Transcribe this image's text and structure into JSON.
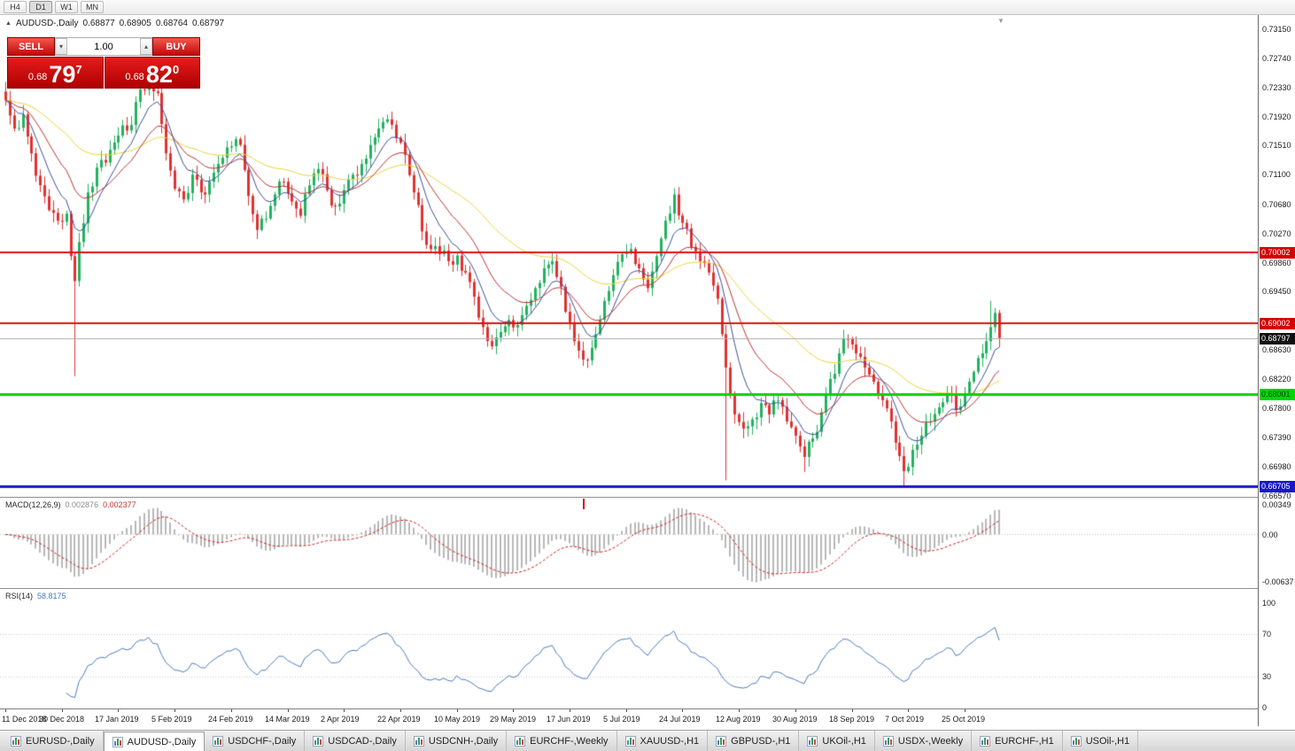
{
  "toolbar": {
    "timeframes": [
      "H4",
      "D1",
      "W1",
      "MN"
    ],
    "active": "D1"
  },
  "chart": {
    "title_symbol": "AUDUSD-,Daily",
    "open": "0.68877",
    "high": "0.68905",
    "low": "0.68764",
    "close": "0.68797"
  },
  "trade_panel": {
    "sell_label": "SELL",
    "buy_label": "BUY",
    "volume": "1.00",
    "bid_prefix": "0.68",
    "bid_big": "79",
    "bid_sup": "7",
    "ask_prefix": "0.68",
    "ask_big": "82",
    "ask_sup": "0"
  },
  "macd_panel": {
    "label": "MACD(12,26,9)",
    "value_main": "0.002876",
    "value_signal": "0.002377",
    "axis": [
      "0.00349",
      "0.00",
      "-0.00637"
    ]
  },
  "rsi_panel": {
    "label": "RSI(14)",
    "value": "58.8175",
    "axis": [
      "100",
      "70",
      "30",
      "0"
    ]
  },
  "tabs": [
    {
      "label": "EURUSD-,Daily",
      "active": false
    },
    {
      "label": "AUDUSD-,Daily",
      "active": true
    },
    {
      "label": "USDCHF-,Daily",
      "active": false
    },
    {
      "label": "USDCAD-,Daily",
      "active": false
    },
    {
      "label": "USDCNH-,Daily",
      "active": false
    },
    {
      "label": "EURCHF-,Weekly",
      "active": false
    },
    {
      "label": "XAUUSD-,H1",
      "active": false
    },
    {
      "label": "GBPUSD-,H1",
      "active": false
    },
    {
      "label": "UKOil-,H1",
      "active": false
    },
    {
      "label": "USDX-,Weekly",
      "active": false
    },
    {
      "label": "EURCHF-,H1",
      "active": false
    },
    {
      "label": "USOil-,H1",
      "active": false
    }
  ],
  "chart_data": {
    "type": "candlestick",
    "symbol": "AUDUSD",
    "timeframe": "Daily",
    "current_quote": {
      "open": 0.68877,
      "high": 0.68905,
      "low": 0.68764,
      "close": 0.68797,
      "bid": 0.68797,
      "ask": 0.6882
    },
    "candle_count": 230,
    "colors": {
      "up": "#22b25f",
      "down": "#e03232",
      "ma_fast": "#3a4f9e",
      "ma_mid": "#c03030",
      "ma_slow": "#e8d43a",
      "macd_hist": "#b8b8b8",
      "macd_signal": "#d02020",
      "rsi": "#4b7bbd"
    },
    "y_axis_ticks": [
      "0.73150",
      "0.72740",
      "0.72330",
      "0.71920",
      "0.71510",
      "0.71100",
      "0.70680",
      "0.70270",
      "0.69860",
      "0.69450",
      "0.68630",
      "0.68220",
      "0.67800",
      "0.67390",
      "0.66980",
      "0.66570"
    ],
    "y_map": {
      "top_tick_price": 0.7315,
      "bottom_tick_price": 0.6657
    },
    "hlines": [
      {
        "price": 0.70002,
        "label": "0.70002",
        "color": "#e01010",
        "width": 2,
        "label_bg": "#d40000",
        "label_color": "#ffffff"
      },
      {
        "price": 0.69002,
        "label": "0.69002",
        "color": "#e01010",
        "width": 2,
        "label_bg": "#d40000",
        "label_color": "#ffffff"
      },
      {
        "price": 0.68001,
        "label": "0.68001",
        "color": "#00d400",
        "width": 3,
        "label_bg": "#00d400",
        "label_color": "#083808"
      },
      {
        "price": 0.66705,
        "label": "0.66705",
        "color": "#1818cc",
        "width": 3,
        "label_bg": "#1818cc",
        "label_color": "#ffffff"
      }
    ],
    "current_price_line": {
      "price": 0.68797,
      "label": "0.68797",
      "color": "#ababab",
      "label_bg": "#111111",
      "label_color": "#ffffff"
    },
    "moving_averages": [
      {
        "name": "slow",
        "period": 50,
        "color_key": "ma_slow"
      },
      {
        "name": "mid",
        "period": 18,
        "color_key": "ma_mid"
      },
      {
        "name": "fast",
        "period": 8,
        "color_key": "ma_fast"
      }
    ],
    "price_anchors": [
      [
        0,
        0.7215
      ],
      [
        2,
        0.7175
      ],
      [
        4,
        0.7195
      ],
      [
        6,
        0.714
      ],
      [
        8,
        0.7095
      ],
      [
        10,
        0.706
      ],
      [
        12,
        0.7045
      ],
      [
        14,
        0.7055
      ],
      [
        15,
        0.6995
      ],
      [
        16,
        0.696
      ],
      [
        17,
        0.7015
      ],
      [
        19,
        0.7085
      ],
      [
        21,
        0.712
      ],
      [
        24,
        0.7145
      ],
      [
        26,
        0.7165
      ],
      [
        29,
        0.718
      ],
      [
        31,
        0.723
      ],
      [
        33,
        0.7248
      ],
      [
        35,
        0.7225
      ],
      [
        37,
        0.714
      ],
      [
        39,
        0.709
      ],
      [
        41,
        0.7075
      ],
      [
        43,
        0.711
      ],
      [
        45,
        0.7085
      ],
      [
        47,
        0.71
      ],
      [
        49,
        0.7125
      ],
      [
        52,
        0.715
      ],
      [
        54,
        0.7152
      ],
      [
        56,
        0.708
      ],
      [
        58,
        0.7032
      ],
      [
        60,
        0.7048
      ],
      [
        62,
        0.7082
      ],
      [
        64,
        0.71
      ],
      [
        66,
        0.7072
      ],
      [
        68,
        0.7052
      ],
      [
        70,
        0.7095
      ],
      [
        72,
        0.7118
      ],
      [
        74,
        0.7088
      ],
      [
        76,
        0.7065
      ],
      [
        78,
        0.7088
      ],
      [
        80,
        0.711
      ],
      [
        82,
        0.7125
      ],
      [
        84,
        0.7152
      ],
      [
        86,
        0.7175
      ],
      [
        88,
        0.7188
      ],
      [
        90,
        0.7162
      ],
      [
        92,
        0.7138
      ],
      [
        94,
        0.7085
      ],
      [
        96,
        0.703
      ],
      [
        98,
        0.7005
      ],
      [
        100,
        0.6998
      ],
      [
        102,
        0.6988
      ],
      [
        104,
        0.6996
      ],
      [
        106,
        0.6972
      ],
      [
        108,
        0.6938
      ],
      [
        110,
        0.6895
      ],
      [
        112,
        0.6868
      ],
      [
        114,
        0.6888
      ],
      [
        116,
        0.6905
      ],
      [
        118,
        0.6898
      ],
      [
        120,
        0.6925
      ],
      [
        122,
        0.695
      ],
      [
        124,
        0.6978
      ],
      [
        126,
        0.6988
      ],
      [
        128,
        0.6952
      ],
      [
        130,
        0.6902
      ],
      [
        132,
        0.6862
      ],
      [
        134,
        0.6848
      ],
      [
        136,
        0.6885
      ],
      [
        138,
        0.6932
      ],
      [
        140,
        0.6968
      ],
      [
        142,
        0.6998
      ],
      [
        144,
        0.7005
      ],
      [
        146,
        0.6978
      ],
      [
        148,
        0.695
      ],
      [
        150,
        0.6995
      ],
      [
        152,
        0.7045
      ],
      [
        154,
        0.7082
      ],
      [
        156,
        0.7042
      ],
      [
        158,
        0.7008
      ],
      [
        160,
        0.6988
      ],
      [
        162,
        0.6972
      ],
      [
        164,
        0.6935
      ],
      [
        165,
        0.6885
      ],
      [
        166,
        0.6838
      ],
      [
        167,
        0.6798
      ],
      [
        168,
        0.6772
      ],
      [
        170,
        0.6752
      ],
      [
        172,
        0.6765
      ],
      [
        174,
        0.6788
      ],
      [
        176,
        0.6772
      ],
      [
        178,
        0.6792
      ],
      [
        180,
        0.6762
      ],
      [
        182,
        0.6742
      ],
      [
        184,
        0.6712
      ],
      [
        186,
        0.6738
      ],
      [
        188,
        0.6775
      ],
      [
        190,
        0.6822
      ],
      [
        192,
        0.6858
      ],
      [
        194,
        0.6878
      ],
      [
        196,
        0.6858
      ],
      [
        198,
        0.6838
      ],
      [
        200,
        0.6818
      ],
      [
        202,
        0.6792
      ],
      [
        204,
        0.6762
      ],
      [
        205,
        0.6732
      ],
      [
        207,
        0.6692
      ],
      [
        209,
        0.6722
      ],
      [
        211,
        0.6742
      ],
      [
        213,
        0.6762
      ],
      [
        215,
        0.6782
      ],
      [
        217,
        0.6802
      ],
      [
        219,
        0.6778
      ],
      [
        221,
        0.6802
      ],
      [
        223,
        0.6832
      ],
      [
        225,
        0.6858
      ],
      [
        227,
        0.6895
      ],
      [
        228,
        0.6915
      ],
      [
        229,
        0.68797
      ]
    ],
    "spikes": [
      {
        "i": 16,
        "low": 0.6826
      },
      {
        "i": 166,
        "low": 0.6679
      },
      {
        "i": 184,
        "low": 0.6691
      },
      {
        "i": 207,
        "low": 0.6672
      },
      {
        "i": 227,
        "high": 0.6932
      }
    ],
    "macd": {
      "params": [
        12,
        26,
        9
      ],
      "current_main": 0.002876,
      "current_signal": 0.002377,
      "axis_max": 0.00349,
      "axis_min": -0.00637
    },
    "rsi": {
      "period": 14,
      "current": 58.8175,
      "range": [
        0,
        100
      ],
      "levels": [
        70,
        30
      ]
    },
    "date_axis": {
      "labels": [
        "11 Dec 2018",
        "30 Dec 2018",
        "17 Jan 2019",
        "5 Feb 2019",
        "24 Feb 2019",
        "14 Mar 2019",
        "2 Apr 2019",
        "22 Apr 2019",
        "10 May 2019",
        "29 May 2019",
        "17 Jun 2019",
        "5 Jul 2019",
        "24 Jul 2019",
        "12 Aug 2019",
        "30 Aug 2019",
        "18 Sep 2019",
        "7 Oct 2019",
        "25 Oct 2019"
      ],
      "candle_indices": [
        0,
        13,
        26,
        39,
        52,
        65,
        78,
        91,
        104,
        117,
        130,
        143,
        156,
        169,
        182,
        195,
        208,
        221
      ]
    }
  }
}
